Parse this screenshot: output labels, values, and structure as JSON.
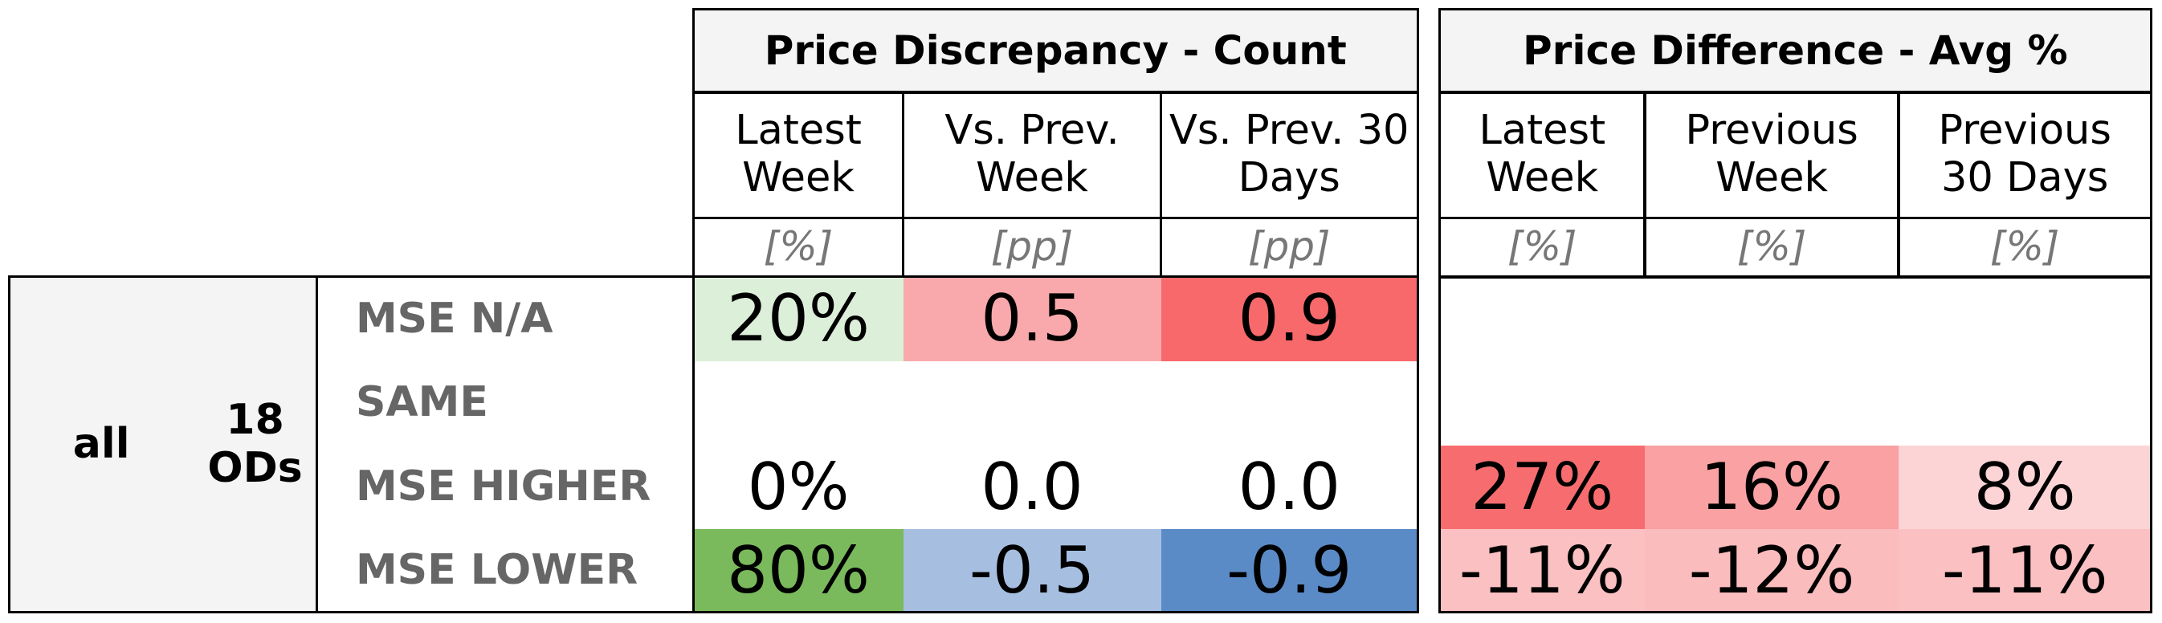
{
  "table": {
    "groups": [
      {
        "title": "Price Discrepancy - Count",
        "columns": [
          {
            "label": "Latest Week",
            "unit": "[%]"
          },
          {
            "label": "Vs. Prev. Week",
            "unit": "[pp]"
          },
          {
            "label": "Vs. Prev. 30 Days",
            "unit": "[pp]"
          }
        ]
      },
      {
        "title": "Price Difference - Avg %",
        "columns": [
          {
            "label": "Latest Week",
            "unit": "[%]"
          },
          {
            "label": "Previous Week",
            "unit": "[%]"
          },
          {
            "label": "Previous 30 Days",
            "unit": "[%]"
          }
        ]
      }
    ],
    "row_group": {
      "level1": "all",
      "level2": "18 ODs"
    },
    "rows": [
      {
        "label": "MSE N/A",
        "cells": [
          "20%",
          "0.5",
          "0.9",
          null,
          null,
          null
        ],
        "colors": [
          "#dcefd9",
          "#f9a9ab",
          "#f8696b",
          null,
          null,
          null
        ]
      },
      {
        "label": "SAME",
        "cells": [
          null,
          null,
          null,
          null,
          null,
          null
        ],
        "colors": [
          null,
          null,
          null,
          null,
          null,
          null
        ]
      },
      {
        "label": "MSE HIGHER",
        "cells": [
          "0%",
          "0.0",
          "0.0",
          "27%",
          "16%",
          "8%"
        ],
        "colors": [
          null,
          null,
          null,
          "#f76d6f",
          "#f9a1a3",
          "#fcd4d5"
        ]
      },
      {
        "label": "MSE LOWER",
        "cells": [
          "80%",
          "-0.5",
          "-0.9",
          "-11%",
          "-12%",
          "-11%"
        ],
        "colors": [
          "#7aba5c",
          "#a6bfe1",
          "#5b8bc7",
          "#fbc0c2",
          "#fbbcbe",
          "#fbc0c2"
        ]
      }
    ]
  }
}
